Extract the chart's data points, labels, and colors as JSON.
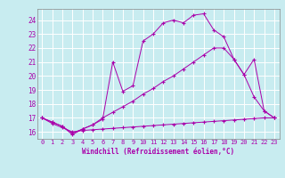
{
  "xlabel": "Windchill (Refroidissement éolien,°C)",
  "bg_color": "#c8ecf0",
  "line_color": "#aa00aa",
  "grid_color": "#b0d8e0",
  "xlim": [
    -0.5,
    23.5
  ],
  "ylim": [
    15.5,
    24.8
  ],
  "xticks": [
    0,
    1,
    2,
    3,
    4,
    5,
    6,
    7,
    8,
    9,
    10,
    11,
    12,
    13,
    14,
    15,
    16,
    17,
    18,
    19,
    20,
    21,
    22,
    23
  ],
  "yticks": [
    16,
    17,
    18,
    19,
    20,
    21,
    22,
    23,
    24
  ],
  "line1_x": [
    0,
    1,
    2,
    3,
    4,
    5,
    6,
    7,
    8,
    9,
    10,
    11,
    12,
    13,
    14,
    15,
    16,
    17,
    18,
    19,
    20,
    21,
    22,
    23
  ],
  "line1_y": [
    17.0,
    16.7,
    16.4,
    15.8,
    16.2,
    16.5,
    16.9,
    21.0,
    18.9,
    19.3,
    22.5,
    23.0,
    23.8,
    24.0,
    23.8,
    24.35,
    24.45,
    23.3,
    22.8,
    21.2,
    20.1,
    21.2,
    17.5,
    17.0
  ],
  "line2_x": [
    0,
    1,
    2,
    3,
    4,
    5,
    6,
    7,
    8,
    9,
    10,
    11,
    12,
    13,
    14,
    15,
    16,
    17,
    18,
    19,
    20,
    21,
    22,
    23
  ],
  "line2_y": [
    17.0,
    16.7,
    16.4,
    15.9,
    16.2,
    16.5,
    17.0,
    17.4,
    17.8,
    18.2,
    18.7,
    19.1,
    19.6,
    20.0,
    20.5,
    21.0,
    21.5,
    22.0,
    22.0,
    21.2,
    20.1,
    18.5,
    17.5,
    17.0
  ],
  "line3_x": [
    0,
    1,
    2,
    3,
    4,
    5,
    6,
    7,
    8,
    9,
    10,
    11,
    12,
    13,
    14,
    15,
    16,
    17,
    18,
    19,
    20,
    21,
    22,
    23
  ],
  "line3_y": [
    17.0,
    16.6,
    16.3,
    16.0,
    16.1,
    16.15,
    16.2,
    16.25,
    16.3,
    16.35,
    16.4,
    16.45,
    16.5,
    16.55,
    16.6,
    16.65,
    16.7,
    16.75,
    16.8,
    16.85,
    16.9,
    16.95,
    17.0,
    17.0
  ]
}
